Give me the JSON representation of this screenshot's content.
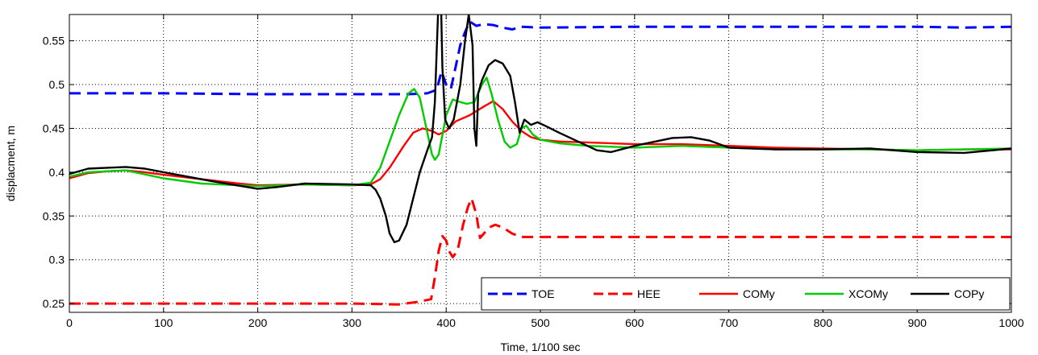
{
  "chart_data": {
    "type": "line",
    "title": "",
    "xlabel": "Time, 1/100 sec",
    "ylabel": "displacment, m",
    "xlim": [
      0,
      1000
    ],
    "ylim": [
      0.24,
      0.58
    ],
    "x_ticks": [
      "0",
      "100",
      "200",
      "300",
      "400",
      "500",
      "600",
      "700",
      "800",
      "900",
      "1000"
    ],
    "y_ticks": [
      "0.25",
      "0.3",
      "0.35",
      "0.4",
      "0.45",
      "0.5",
      "0.55"
    ],
    "grid": true,
    "legend": {
      "placement": "bottom-right",
      "orientation": "horizontal"
    },
    "series": [
      {
        "name": "TOE",
        "color": "#0000ff",
        "dash": "dashed",
        "points": [
          [
            0,
            0.49
          ],
          [
            100,
            0.49
          ],
          [
            200,
            0.489
          ],
          [
            300,
            0.489
          ],
          [
            360,
            0.489
          ],
          [
            380,
            0.49
          ],
          [
            390,
            0.494
          ],
          [
            395,
            0.515
          ],
          [
            400,
            0.5
          ],
          [
            405,
            0.495
          ],
          [
            410,
            0.52
          ],
          [
            415,
            0.545
          ],
          [
            420,
            0.56
          ],
          [
            425,
            0.572
          ],
          [
            432,
            0.567
          ],
          [
            440,
            0.569
          ],
          [
            450,
            0.568
          ],
          [
            460,
            0.565
          ],
          [
            470,
            0.563
          ],
          [
            480,
            0.566
          ],
          [
            500,
            0.565
          ],
          [
            600,
            0.566
          ],
          [
            700,
            0.566
          ],
          [
            800,
            0.566
          ],
          [
            900,
            0.566
          ],
          [
            950,
            0.565
          ],
          [
            1000,
            0.566
          ]
        ]
      },
      {
        "name": "HEE",
        "color": "#ff0000",
        "dash": "dashed",
        "points": [
          [
            0,
            0.25
          ],
          [
            100,
            0.25
          ],
          [
            200,
            0.25
          ],
          [
            300,
            0.25
          ],
          [
            350,
            0.249
          ],
          [
            370,
            0.252
          ],
          [
            384,
            0.255
          ],
          [
            388,
            0.28
          ],
          [
            392,
            0.31
          ],
          [
            396,
            0.327
          ],
          [
            400,
            0.322
          ],
          [
            403,
            0.31
          ],
          [
            407,
            0.303
          ],
          [
            412,
            0.31
          ],
          [
            418,
            0.34
          ],
          [
            423,
            0.36
          ],
          [
            427,
            0.37
          ],
          [
            432,
            0.352
          ],
          [
            436,
            0.325
          ],
          [
            440,
            0.33
          ],
          [
            446,
            0.337
          ],
          [
            452,
            0.34
          ],
          [
            460,
            0.337
          ],
          [
            470,
            0.33
          ],
          [
            480,
            0.326
          ],
          [
            500,
            0.326
          ],
          [
            600,
            0.326
          ],
          [
            700,
            0.326
          ],
          [
            800,
            0.326
          ],
          [
            900,
            0.326
          ],
          [
            1000,
            0.326
          ]
        ]
      },
      {
        "name": "COMy",
        "color": "#ff0000",
        "dash": "solid",
        "points": [
          [
            0,
            0.393
          ],
          [
            20,
            0.399
          ],
          [
            40,
            0.401
          ],
          [
            60,
            0.402
          ],
          [
            80,
            0.4
          ],
          [
            100,
            0.397
          ],
          [
            140,
            0.392
          ],
          [
            180,
            0.387
          ],
          [
            200,
            0.385
          ],
          [
            250,
            0.386
          ],
          [
            300,
            0.385
          ],
          [
            320,
            0.386
          ],
          [
            330,
            0.392
          ],
          [
            340,
            0.405
          ],
          [
            355,
            0.43
          ],
          [
            365,
            0.445
          ],
          [
            375,
            0.45
          ],
          [
            385,
            0.447
          ],
          [
            392,
            0.443
          ],
          [
            400,
            0.447
          ],
          [
            410,
            0.458
          ],
          [
            425,
            0.465
          ],
          [
            440,
            0.475
          ],
          [
            450,
            0.481
          ],
          [
            460,
            0.472
          ],
          [
            470,
            0.458
          ],
          [
            480,
            0.447
          ],
          [
            490,
            0.44
          ],
          [
            500,
            0.437
          ],
          [
            520,
            0.435
          ],
          [
            550,
            0.434
          ],
          [
            600,
            0.432
          ],
          [
            650,
            0.432
          ],
          [
            700,
            0.43
          ],
          [
            750,
            0.428
          ],
          [
            800,
            0.427
          ],
          [
            850,
            0.426
          ],
          [
            900,
            0.425
          ],
          [
            950,
            0.426
          ],
          [
            1000,
            0.426
          ]
        ]
      },
      {
        "name": "XCOMy",
        "color": "#00cc00",
        "dash": "solid",
        "points": [
          [
            0,
            0.395
          ],
          [
            20,
            0.4
          ],
          [
            60,
            0.402
          ],
          [
            100,
            0.393
          ],
          [
            140,
            0.387
          ],
          [
            200,
            0.384
          ],
          [
            250,
            0.386
          ],
          [
            300,
            0.385
          ],
          [
            320,
            0.388
          ],
          [
            330,
            0.405
          ],
          [
            340,
            0.435
          ],
          [
            350,
            0.465
          ],
          [
            360,
            0.49
          ],
          [
            366,
            0.495
          ],
          [
            372,
            0.485
          ],
          [
            378,
            0.455
          ],
          [
            385,
            0.42
          ],
          [
            388,
            0.414
          ],
          [
            392,
            0.42
          ],
          [
            400,
            0.465
          ],
          [
            407,
            0.483
          ],
          [
            415,
            0.48
          ],
          [
            422,
            0.478
          ],
          [
            430,
            0.48
          ],
          [
            438,
            0.5
          ],
          [
            443,
            0.508
          ],
          [
            448,
            0.49
          ],
          [
            455,
            0.46
          ],
          [
            462,
            0.435
          ],
          [
            468,
            0.428
          ],
          [
            475,
            0.432
          ],
          [
            480,
            0.45
          ],
          [
            485,
            0.453
          ],
          [
            492,
            0.443
          ],
          [
            500,
            0.437
          ],
          [
            520,
            0.433
          ],
          [
            550,
            0.43
          ],
          [
            600,
            0.428
          ],
          [
            650,
            0.43
          ],
          [
            700,
            0.428
          ],
          [
            750,
            0.426
          ],
          [
            800,
            0.426
          ],
          [
            850,
            0.426
          ],
          [
            900,
            0.425
          ],
          [
            950,
            0.426
          ],
          [
            1000,
            0.427
          ]
        ]
      },
      {
        "name": "COPy",
        "color": "#000000",
        "dash": "solid",
        "points": [
          [
            0,
            0.398
          ],
          [
            20,
            0.404
          ],
          [
            40,
            0.405
          ],
          [
            60,
            0.406
          ],
          [
            80,
            0.404
          ],
          [
            100,
            0.4
          ],
          [
            150,
            0.39
          ],
          [
            200,
            0.381
          ],
          [
            220,
            0.383
          ],
          [
            250,
            0.387
          ],
          [
            300,
            0.386
          ],
          [
            320,
            0.385
          ],
          [
            325,
            0.38
          ],
          [
            330,
            0.37
          ],
          [
            336,
            0.35
          ],
          [
            340,
            0.33
          ],
          [
            345,
            0.32
          ],
          [
            350,
            0.322
          ],
          [
            358,
            0.34
          ],
          [
            365,
            0.37
          ],
          [
            372,
            0.4
          ],
          [
            380,
            0.425
          ],
          [
            385,
            0.44
          ],
          [
            388,
            0.48
          ],
          [
            390,
            0.54
          ],
          [
            392,
            0.6
          ],
          [
            394,
            0.62
          ],
          [
            396,
            0.52
          ],
          [
            399,
            0.46
          ],
          [
            403,
            0.45
          ],
          [
            408,
            0.46
          ],
          [
            415,
            0.5
          ],
          [
            420,
            0.55
          ],
          [
            424,
            0.58
          ],
          [
            428,
            0.545
          ],
          [
            430,
            0.45
          ],
          [
            432,
            0.43
          ],
          [
            434,
            0.49
          ],
          [
            438,
            0.505
          ],
          [
            445,
            0.522
          ],
          [
            452,
            0.528
          ],
          [
            460,
            0.524
          ],
          [
            468,
            0.51
          ],
          [
            473,
            0.48
          ],
          [
            478,
            0.445
          ],
          [
            483,
            0.46
          ],
          [
            490,
            0.454
          ],
          [
            497,
            0.457
          ],
          [
            505,
            0.453
          ],
          [
            520,
            0.445
          ],
          [
            540,
            0.435
          ],
          [
            560,
            0.425
          ],
          [
            575,
            0.423
          ],
          [
            600,
            0.43
          ],
          [
            640,
            0.439
          ],
          [
            660,
            0.44
          ],
          [
            680,
            0.436
          ],
          [
            700,
            0.428
          ],
          [
            750,
            0.426
          ],
          [
            800,
            0.426
          ],
          [
            850,
            0.427
          ],
          [
            900,
            0.423
          ],
          [
            950,
            0.422
          ],
          [
            1000,
            0.427
          ]
        ]
      }
    ]
  }
}
